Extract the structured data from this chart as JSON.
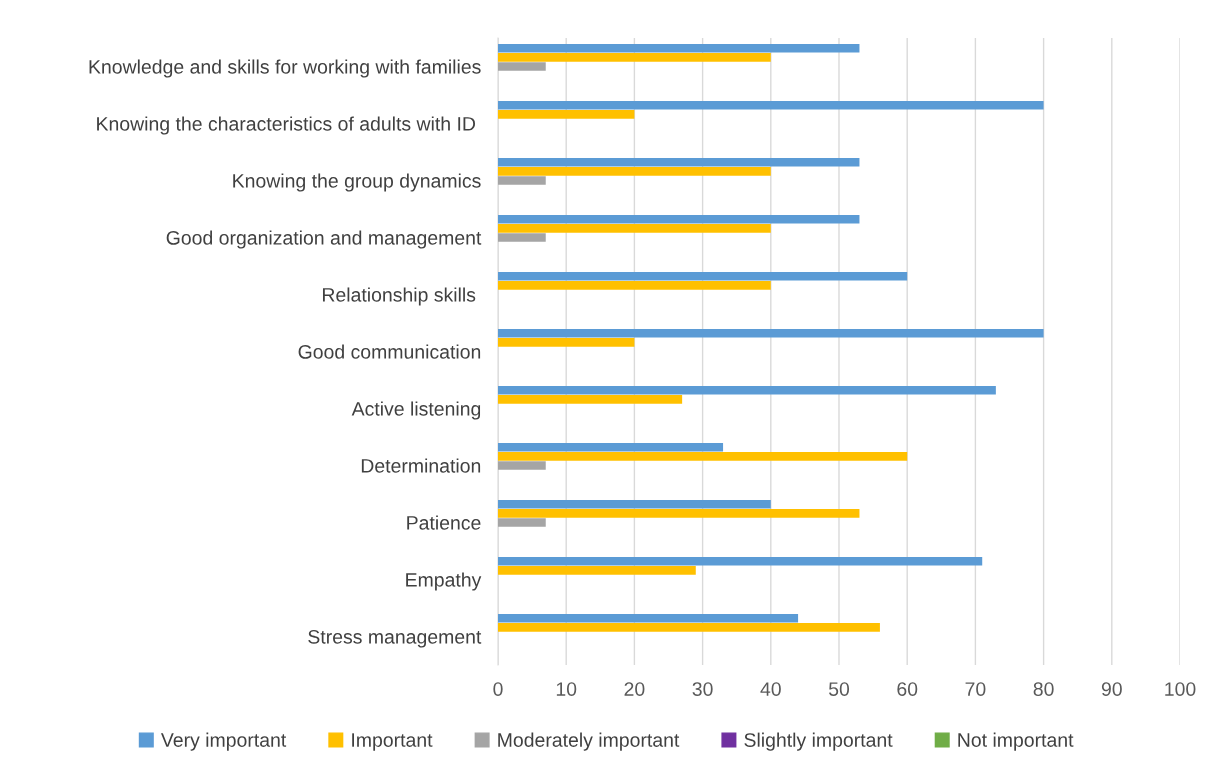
{
  "chart_data": {
    "type": "bar",
    "orientation": "horizontal",
    "categories": [
      "Knowledge and skills for working with families",
      "Knowing the characteristics of adults with ID ",
      "Knowing the group dynamics",
      "Good organization and management",
      "Relationship skills ",
      "Good communication",
      "Active listening",
      "Determination",
      "Patience",
      "Empathy",
      "Stress management"
    ],
    "series": [
      {
        "name": "Very important",
        "color": "#5b9bd5",
        "values": [
          53,
          80,
          53,
          53,
          60,
          80,
          73,
          33,
          40,
          71,
          44
        ]
      },
      {
        "name": "Important",
        "color": "#ffc000",
        "values": [
          40,
          20,
          40,
          40,
          40,
          20,
          27,
          60,
          53,
          29,
          56
        ]
      },
      {
        "name": "Moderately important",
        "color": "#a5a5a5",
        "values": [
          7,
          0,
          7,
          7,
          0,
          0,
          0,
          7,
          7,
          0,
          0
        ]
      },
      {
        "name": "Slightly important",
        "color": "#7030a0",
        "values": [
          0,
          0,
          0,
          0,
          0,
          0,
          0,
          0,
          0,
          0,
          0
        ]
      },
      {
        "name": "Not important",
        "color": "#70ad47",
        "values": [
          0,
          0,
          0,
          0,
          0,
          0,
          0,
          0,
          0,
          0,
          0
        ]
      }
    ],
    "xlim": [
      0,
      100
    ],
    "xticks": [
      0,
      10,
      20,
      30,
      40,
      50,
      60,
      70,
      80,
      90,
      100
    ],
    "grid": "x",
    "legend": "bottom"
  }
}
